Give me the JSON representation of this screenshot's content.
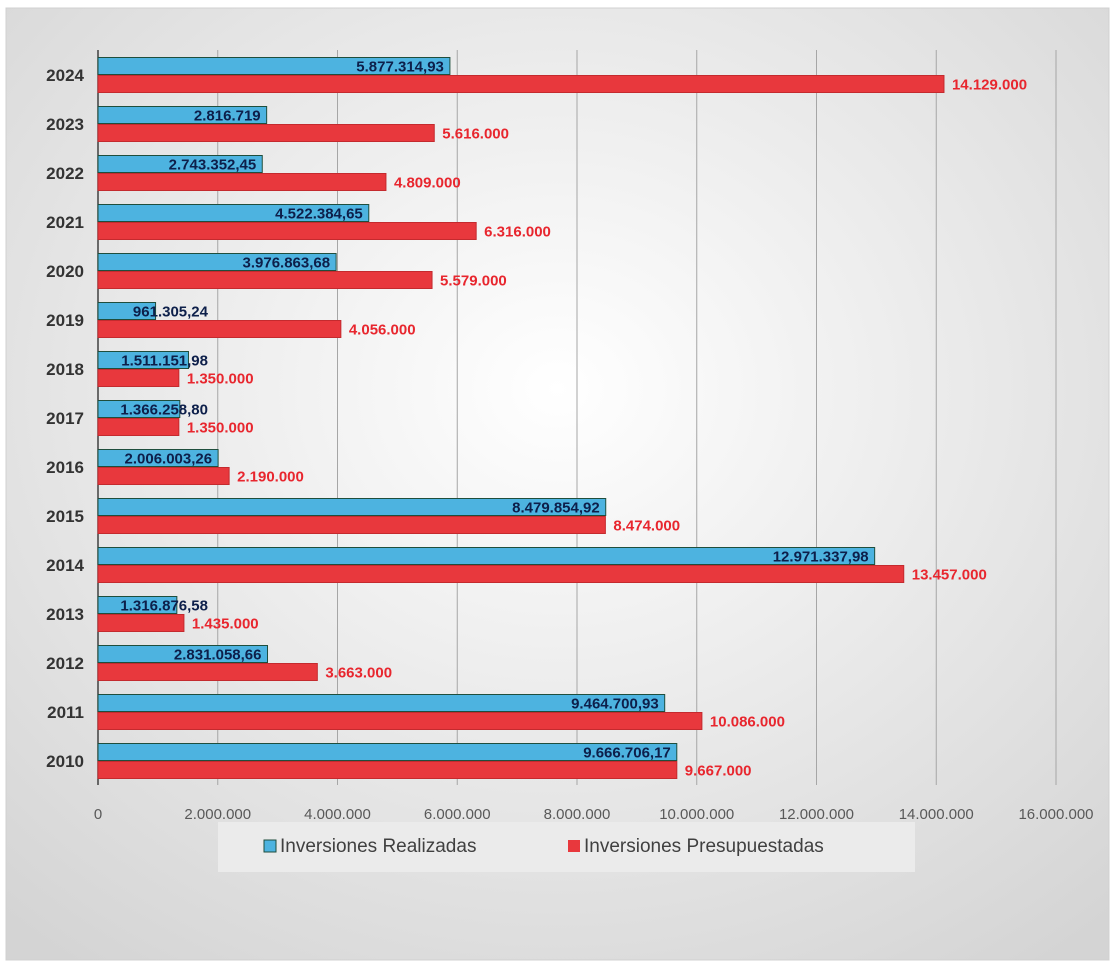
{
  "chart_data": {
    "type": "bar",
    "orientation": "horizontal",
    "categories": [
      "2010",
      "2011",
      "2012",
      "2013",
      "2014",
      "2015",
      "2016",
      "2017",
      "2018",
      "2019",
      "2020",
      "2021",
      "2022",
      "2023",
      "2024"
    ],
    "series": [
      {
        "name": "Inversiones Realizadas",
        "color": "#4db3e0",
        "label_color": "#0d1f4a",
        "values": [
          9666706.17,
          9464700.93,
          2831058.66,
          1316876.58,
          12971337.98,
          8479854.92,
          2006003.26,
          1366258.8,
          1511151.98,
          961305.24,
          3976863.68,
          4522384.65,
          2743352.45,
          2816719,
          5877314.93
        ],
        "value_labels": [
          "9.666.706,17",
          "9.464.700,93",
          "2.831.058,66",
          "1.316.876,58",
          "12.971.337,98",
          "8.479.854,92",
          "2.006.003,26",
          "1.366.258,80",
          "1.511.151,98",
          "961.305,24",
          "3.976.863,68",
          "4.522.384,65",
          "2.743.352,45",
          "2.816.719",
          "5.877.314,93"
        ]
      },
      {
        "name": "Inversiones Presupuestadas",
        "color": "#e8383d",
        "label_color": "#e8262e",
        "values": [
          9667000,
          10086000,
          3663000,
          1435000,
          13457000,
          8474000,
          2190000,
          1350000,
          1350000,
          4056000,
          5579000,
          6316000,
          4809000,
          5616000,
          14129000
        ],
        "value_labels": [
          "9.667.000",
          "10.086.000",
          "3.663.000",
          "1.435.000",
          "13.457.000",
          "8.474.000",
          "2.190.000",
          "1.350.000",
          "1.350.000",
          "4.056.000",
          "5.579.000",
          "6.316.000",
          "4.809.000",
          "5.616.000",
          "14.129.000"
        ]
      }
    ],
    "xlim": [
      0,
      16000000
    ],
    "xticks": [
      0,
      {
        "value": 2000000,
        "label": "2.000.000"
      },
      {
        "value": 4000000,
        "label": "4.000.000"
      },
      {
        "value": 6000000,
        "label": "6.000.000"
      },
      {
        "value": 8000000,
        "label": "8.000.000"
      },
      {
        "value": 10000000,
        "label": "10.000.000"
      },
      {
        "value": 12000000,
        "label": "12.000.000"
      },
      {
        "value": 14000000,
        "label": "14.000.000"
      },
      {
        "value": 16000000,
        "label": "16.000.000"
      }
    ],
    "grid": true,
    "legend": "bottom"
  }
}
